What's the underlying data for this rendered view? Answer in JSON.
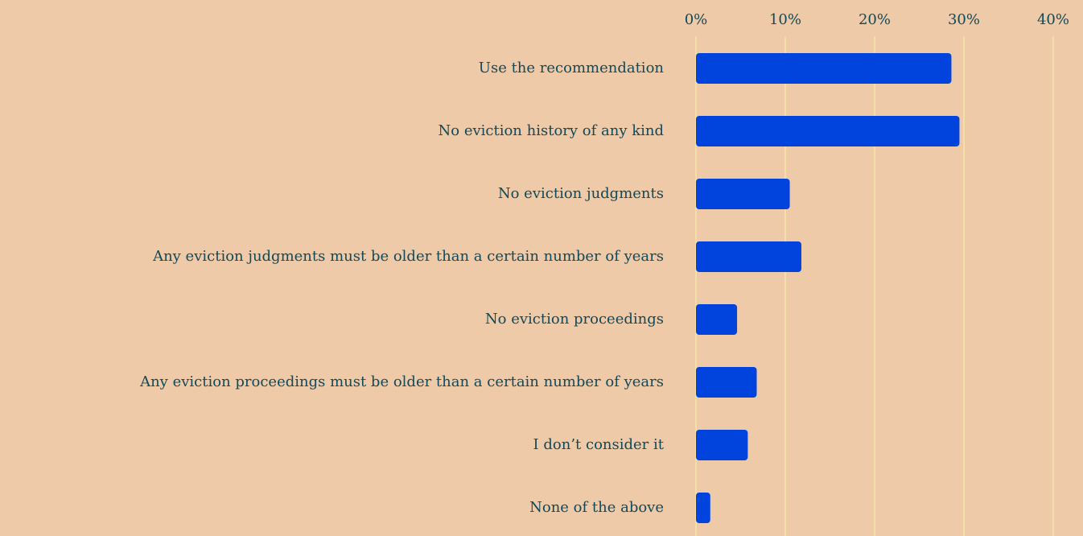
{
  "chart_data": {
    "type": "barh",
    "categories": [
      "Use the recommendation",
      "No eviction history of any kind",
      "No eviction judgments",
      "Any eviction judgments must be older than a certain number of years",
      "No eviction proceedings",
      "Any eviction proceedings must be older than a certain number of years",
      "I don’t consider it",
      "None of the above"
    ],
    "values": [
      28.6,
      29.5,
      10.5,
      11.8,
      4.6,
      6.8,
      5.8,
      1.6
    ],
    "color": "#0044dd",
    "xlim": [
      0,
      40
    ],
    "xticks": [
      {
        "value": 0,
        "label": "0%"
      },
      {
        "value": 10,
        "label": "10%"
      },
      {
        "value": 20,
        "label": "20%"
      },
      {
        "value": 30,
        "label": "30%"
      },
      {
        "value": 40,
        "label": "40%"
      }
    ],
    "grid": true
  }
}
